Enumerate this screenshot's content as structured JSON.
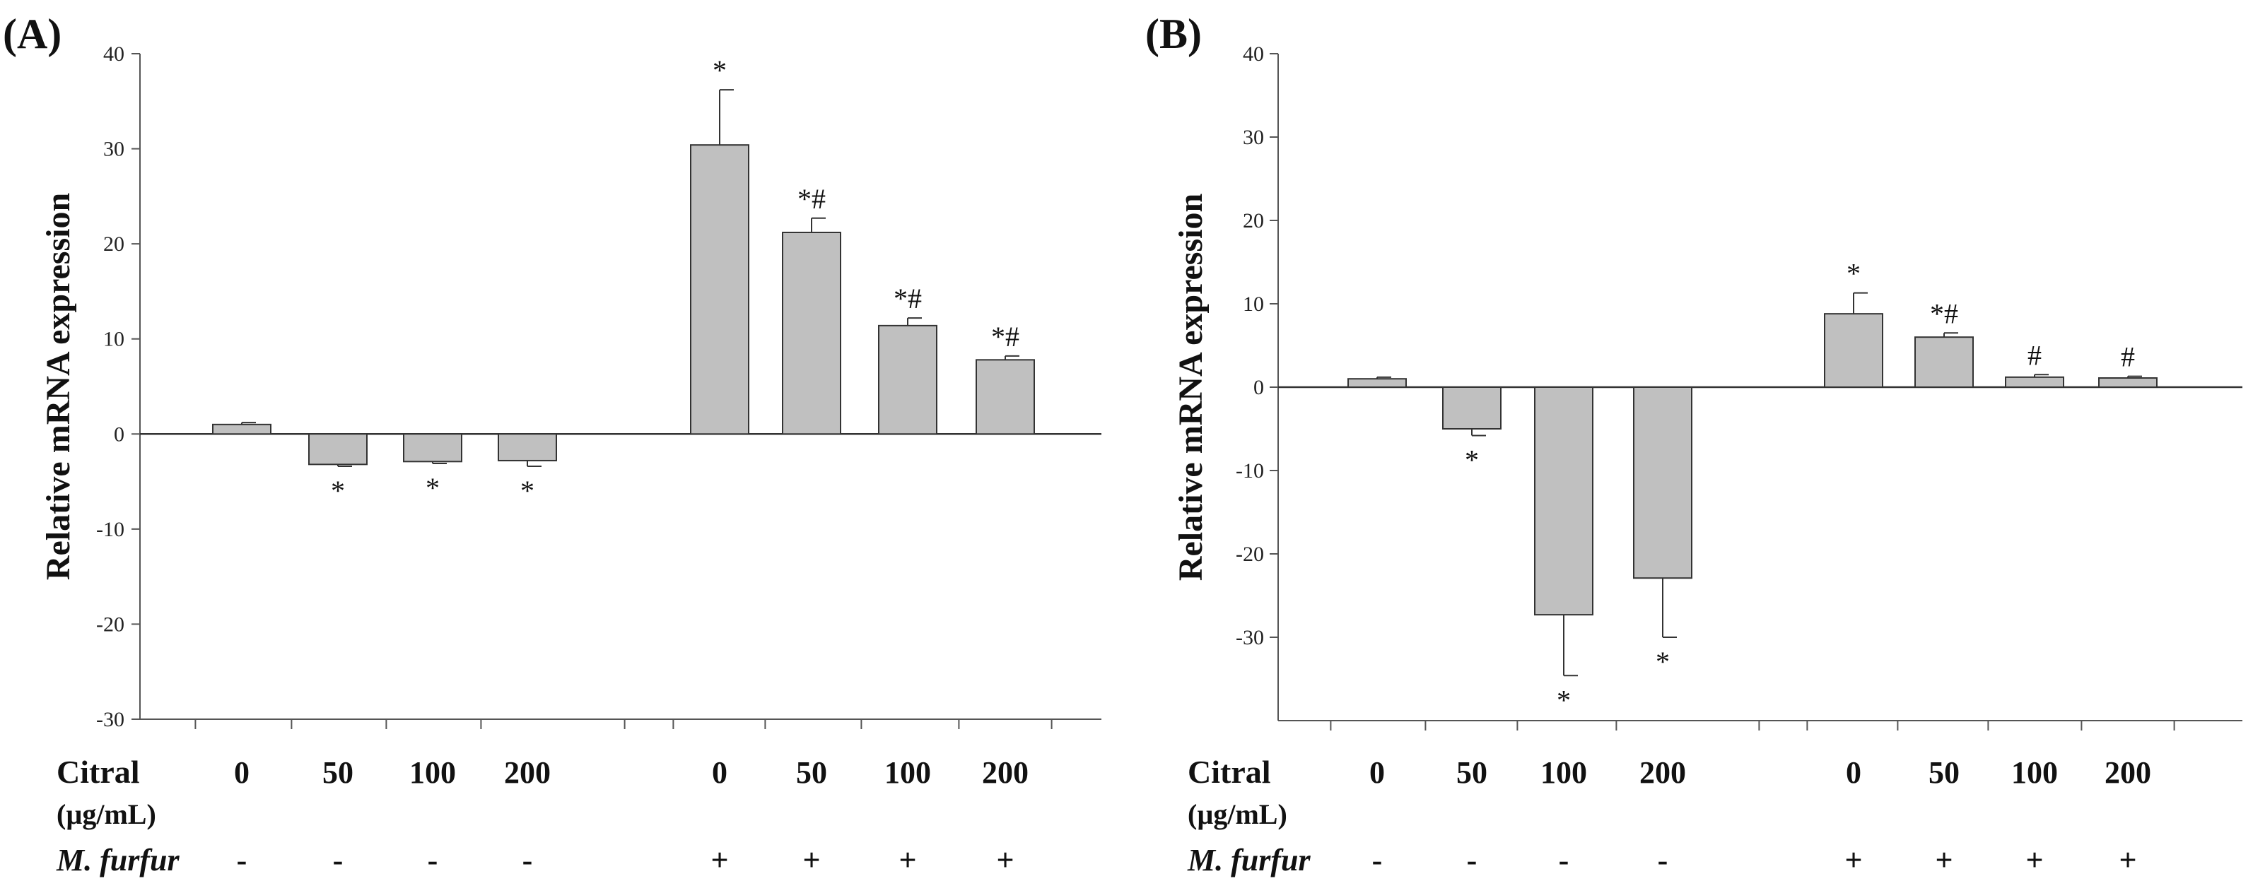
{
  "chart_data": [
    {
      "type": "bar",
      "panel_label": "(A)",
      "ylabel": "Relative mRNA expression",
      "ylim": [
        -30,
        40
      ],
      "yticks": [
        40,
        30,
        20,
        10,
        0,
        -10,
        -20,
        -30
      ],
      "grid": false,
      "bar_color": "#c0c0c0",
      "treatment_labels": {
        "citral": "Citral",
        "unit": "(µg/mL)",
        "pathogen": "M. furfur"
      },
      "categories": [
        "0",
        "50",
        "100",
        "200",
        "0",
        "50",
        "100",
        "200"
      ],
      "m_furfur": [
        "-",
        "-",
        "-",
        "-",
        "+",
        "+",
        "+",
        "+"
      ],
      "values": [
        1.0,
        -3.2,
        -2.9,
        -2.8,
        30.4,
        21.2,
        11.4,
        7.8
      ],
      "errors": [
        0.2,
        0.2,
        0.2,
        0.6,
        5.8,
        1.5,
        0.8,
        0.4
      ],
      "annotations": [
        "",
        "*",
        "*",
        "*",
        "*",
        "*#",
        "*#",
        "*#"
      ]
    },
    {
      "type": "bar",
      "panel_label": "(B)",
      "ylabel": "Relative mRNA expression",
      "ylim": [
        -40,
        40
      ],
      "yticks": [
        40,
        30,
        20,
        10,
        0,
        -10,
        -20,
        -30
      ],
      "grid": false,
      "bar_color": "#c0c0c0",
      "treatment_labels": {
        "citral": "Citral",
        "unit": "(µg/mL)",
        "pathogen": "M. furfur"
      },
      "categories": [
        "0",
        "50",
        "100",
        "200",
        "0",
        "50",
        "100",
        "200"
      ],
      "m_furfur": [
        "-",
        "-",
        "-",
        "-",
        "+",
        "+",
        "+",
        "+"
      ],
      "values": [
        1.0,
        -5.0,
        -27.3,
        -22.9,
        8.8,
        6.0,
        1.2,
        1.1
      ],
      "errors": [
        0.2,
        0.8,
        7.3,
        7.1,
        2.5,
        0.5,
        0.3,
        0.2
      ],
      "annotations": [
        "",
        "*",
        "*",
        "*",
        "*",
        "*#",
        "#",
        "#"
      ]
    }
  ]
}
